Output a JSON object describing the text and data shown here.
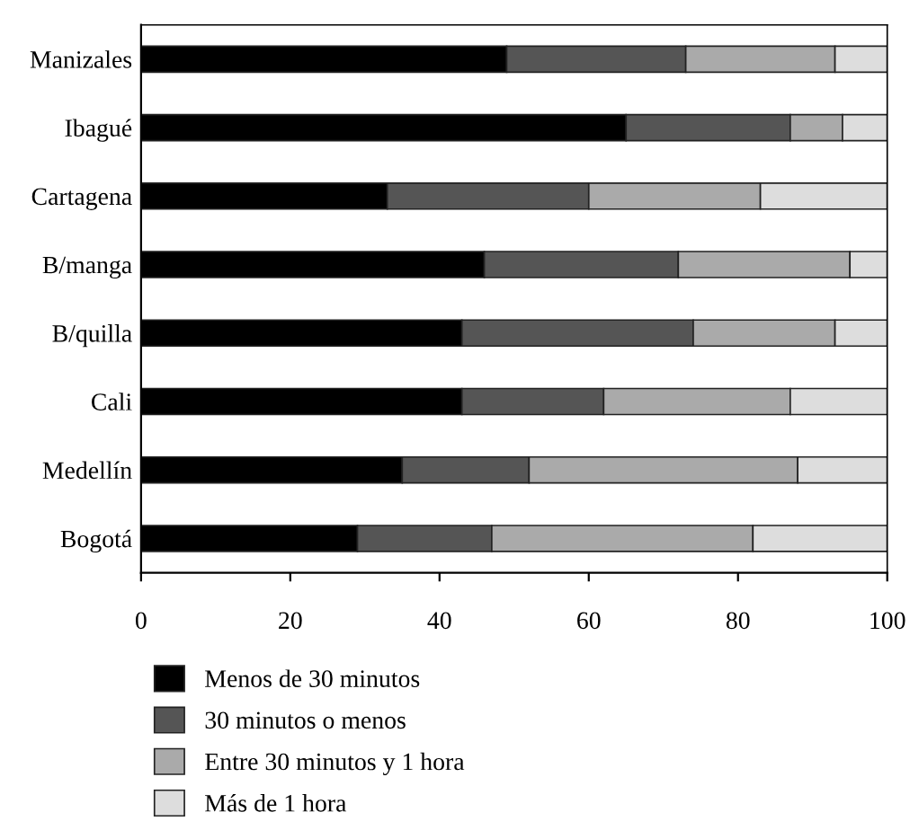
{
  "chart_data": {
    "type": "bar",
    "orientation": "horizontal",
    "stacked": true,
    "categories": [
      "Manizales",
      "Ibagué",
      "Cartagena",
      "B/manga",
      "B/quilla",
      "Cali",
      "Medellín",
      "Bogotá"
    ],
    "series": [
      {
        "name": "Menos de 30 minutos",
        "color": "#000000",
        "values": [
          49,
          65,
          33,
          46,
          43,
          43,
          35,
          29
        ]
      },
      {
        "name": "30 minutos o menos",
        "color": "#555555",
        "values": [
          24,
          22,
          27,
          26,
          31,
          19,
          17,
          18
        ]
      },
      {
        "name": "Entre 30 minutos y 1 hora",
        "color": "#aaaaaa",
        "values": [
          20,
          7,
          23,
          23,
          19,
          25,
          36,
          35
        ]
      },
      {
        "name": "Más de 1 hora",
        "color": "#dddddd",
        "values": [
          7,
          6,
          17,
          5,
          7,
          13,
          12,
          18
        ]
      }
    ],
    "xlim": [
      0,
      100
    ],
    "xticks": [
      0,
      20,
      40,
      60,
      80,
      100
    ],
    "grid": false,
    "legend": "bottom"
  }
}
